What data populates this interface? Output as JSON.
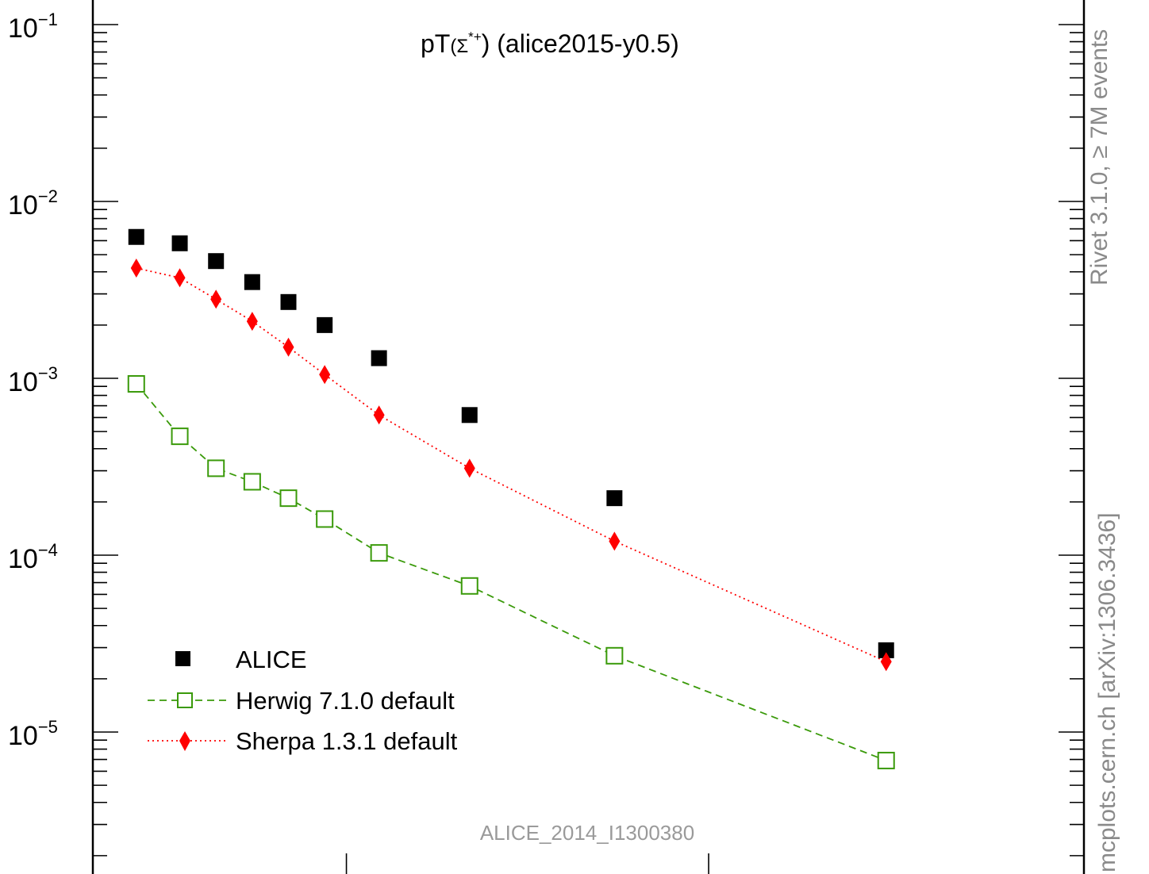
{
  "chart_data": {
    "type": "scatter",
    "title": "pT(Σ*⁺) (alice2015-y0.5)",
    "title_parts": {
      "prefix": "pT",
      "particle": "(Σ",
      "superscript": "*+",
      "suffix": ") (alice2015-y0.5)"
    },
    "xlabel": "",
    "ylabel": "",
    "y_scale": "log",
    "ylim": [
      2e-06,
      0.14
    ],
    "xlim": [
      0,
      11.5
    ],
    "y_tick_labels": [
      {
        "base": "10",
        "exp": "−1",
        "value": 0.1
      },
      {
        "base": "10",
        "exp": "−2",
        "value": 0.01
      },
      {
        "base": "10",
        "exp": "−3",
        "value": 0.001
      },
      {
        "base": "10",
        "exp": "−4",
        "value": 0.0001
      },
      {
        "base": "10",
        "exp": "−5",
        "value": 1e-05
      }
    ],
    "x_major_ticks": [
      3.5,
      8.5
    ],
    "legend_position": "bottom-left",
    "series": [
      {
        "name": "ALICE",
        "style": "markers",
        "marker": "filled-square",
        "color": "#000000",
        "x": [
          0.6,
          1.2,
          1.7,
          2.2,
          2.7,
          3.2,
          3.95,
          5.2,
          7.2,
          10.95
        ],
        "y": [
          0.0063,
          0.0058,
          0.0046,
          0.0035,
          0.0027,
          0.002,
          0.0013,
          0.00062,
          0.00021,
          2.9e-05
        ]
      },
      {
        "name": "Herwig 7.1.0 default",
        "style": "dashed-line-markers",
        "marker": "open-square",
        "color": "#3a9a0a",
        "x": [
          0.6,
          1.2,
          1.7,
          2.2,
          2.7,
          3.2,
          3.95,
          5.2,
          7.2,
          10.95
        ],
        "y": [
          0.00093,
          0.00047,
          0.00031,
          0.00026,
          0.00021,
          0.00016,
          0.000103,
          6.7e-05,
          2.7e-05,
          6.9e-06
        ]
      },
      {
        "name": "Sherpa 1.3.1 default",
        "style": "dotted-line-markers",
        "marker": "filled-diamond",
        "color": "#ff0000",
        "x": [
          0.6,
          1.2,
          1.7,
          2.2,
          2.7,
          3.2,
          3.95,
          5.2,
          7.2,
          10.95
        ],
        "y": [
          0.0042,
          0.0037,
          0.0028,
          0.0021,
          0.0015,
          0.00105,
          0.00062,
          0.00031,
          0.00012,
          2.5e-05
        ]
      }
    ]
  },
  "side_labels": {
    "rivet": "Rivet 3.1.0, ≥ 7M events",
    "mcplots": "mcplots.cern.ch [arXiv:1306.3436]"
  },
  "analysis_id": "ALICE_2014_I1300380"
}
